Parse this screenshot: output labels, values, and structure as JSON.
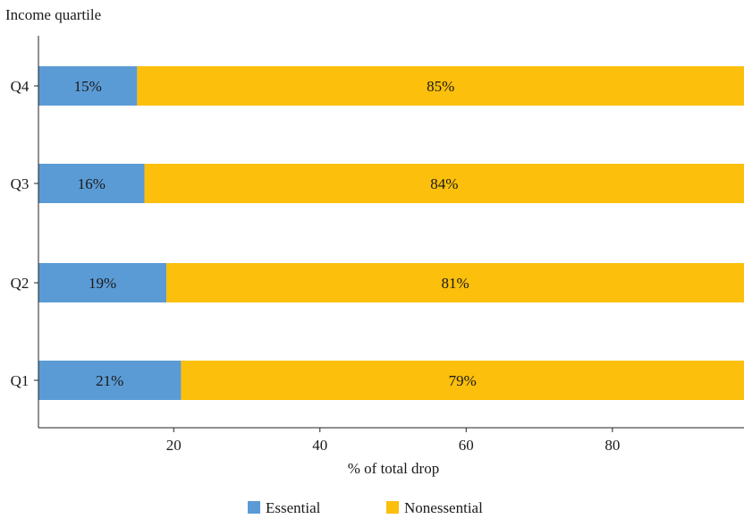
{
  "chart_data": {
    "type": "bar",
    "orientation": "horizontal",
    "stacked": true,
    "ylabel": "Income quartile",
    "xlabel": "% of total drop",
    "categories": [
      "Q1",
      "Q2",
      "Q3",
      "Q4"
    ],
    "series": [
      {
        "name": "Essential",
        "color": "#5b9bd5",
        "values": [
          21,
          19,
          16,
          15
        ],
        "labels": [
          "21%",
          "19%",
          "16%",
          "15%"
        ]
      },
      {
        "name": "Nonessential",
        "color": "#fbbf0c",
        "values": [
          79,
          81,
          84,
          85
        ],
        "labels": [
          "79%",
          "81%",
          "84%",
          "85%"
        ]
      }
    ],
    "xticks": [
      20,
      40,
      60,
      80
    ],
    "xlim": [
      1.5,
      98
    ],
    "grid": false,
    "legend": "bottom"
  }
}
